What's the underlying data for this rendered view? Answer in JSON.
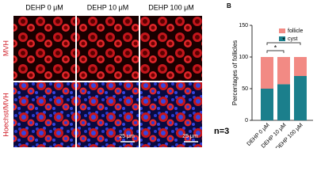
{
  "panel_a": {
    "columns": [
      "DEHP 0 μM",
      "DEHP 10 μM",
      "DEHP 100 μM"
    ],
    "rows": [
      "MVH",
      "Hoechst/MVH"
    ],
    "scale_bars": [
      "25 μm",
      "25 μm"
    ]
  },
  "chart_data": {
    "type": "bar",
    "stacked": true,
    "panel_label": "B",
    "y_label": "Percentages of follicles",
    "categories": [
      "DEHP 0 μM",
      "DEHP 10 μM",
      "DEHP 100 μM"
    ],
    "series": [
      {
        "name": "cyst",
        "color": "#1b7f8c",
        "values": [
          50,
          57,
          70
        ]
      },
      {
        "name": "follicle",
        "color": "#f28a84",
        "values": [
          50,
          43,
          30
        ]
      }
    ],
    "ylim": [
      0,
      150
    ],
    "yticks": [
      0,
      50,
      100,
      150
    ],
    "annotations": [
      "*",
      "*"
    ],
    "note": "n=3"
  }
}
